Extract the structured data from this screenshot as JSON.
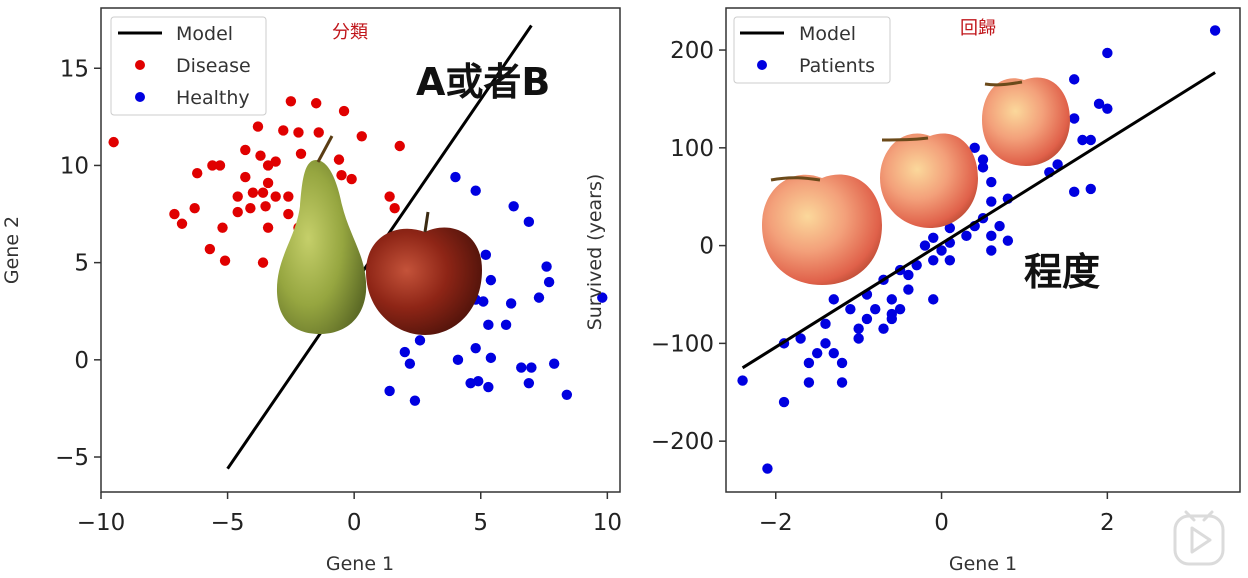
{
  "colors": {
    "model_line": "#000000",
    "disease": "#e00000",
    "healthy": "#0000e0",
    "patients": "#0000e0",
    "annotation_red": "#c0161b"
  },
  "annotations": {
    "classification_title": "分類",
    "regression_title": "回歸",
    "classification_big": "A或者B",
    "regression_big": "程度"
  },
  "images": {
    "pear": "pear-image",
    "red_apple": "red-apple-image",
    "apples": [
      "apple-image",
      "apple-image",
      "apple-image"
    ]
  },
  "watermark_icon": "play-icon",
  "chart_data": [
    {
      "type": "scatter",
      "xlabel": "Gene 1",
      "ylabel": "Gene 2",
      "xlim": [
        -10,
        10.5
      ],
      "ylim": [
        -6.8,
        18.1
      ],
      "xticks": [
        -10,
        -5,
        0,
        5,
        10
      ],
      "yticks": [
        -5,
        0,
        5,
        10,
        15
      ],
      "xtick_labels": [
        "−10",
        "−5",
        "0",
        "5",
        "10"
      ],
      "ytick_labels": [
        "−5",
        "0",
        "5",
        "10",
        "15"
      ],
      "legend": {
        "placement": "top-left",
        "entries": [
          "Model",
          "Disease",
          "Healthy"
        ]
      },
      "model_line": {
        "name": "Model",
        "points": [
          [
            -5,
            -5.6
          ],
          [
            7,
            17.2
          ]
        ]
      },
      "series": [
        {
          "name": "Disease",
          "color": "#e00000",
          "points": [
            [
              -9.5,
              11.2
            ],
            [
              -4.1,
              14.0
            ],
            [
              -2.5,
              13.3
            ],
            [
              -1.5,
              13.2
            ],
            [
              -0.4,
              12.8
            ],
            [
              -3.8,
              12.0
            ],
            [
              -2.8,
              11.8
            ],
            [
              -2.2,
              11.7
            ],
            [
              -1.4,
              11.7
            ],
            [
              0.3,
              11.5
            ],
            [
              -4.3,
              10.8
            ],
            [
              -3.7,
              10.5
            ],
            [
              -2.1,
              10.6
            ],
            [
              -0.6,
              10.3
            ],
            [
              1.8,
              11.0
            ],
            [
              -5.6,
              10.0
            ],
            [
              -5.3,
              10.0
            ],
            [
              -3.4,
              10.0
            ],
            [
              -3.1,
              10.2
            ],
            [
              -6.2,
              9.6
            ],
            [
              -4.3,
              9.4
            ],
            [
              -3.4,
              9.1
            ],
            [
              -0.5,
              9.5
            ],
            [
              -0.1,
              9.3
            ],
            [
              -4.6,
              8.4
            ],
            [
              -4.0,
              8.6
            ],
            [
              -3.6,
              8.6
            ],
            [
              -3.1,
              8.4
            ],
            [
              -2.6,
              8.4
            ],
            [
              -1.8,
              8.6
            ],
            [
              -4.6,
              7.6
            ],
            [
              -4.1,
              7.8
            ],
            [
              -3.5,
              7.9
            ],
            [
              -2.6,
              7.5
            ],
            [
              -6.3,
              7.8
            ],
            [
              -7.1,
              7.5
            ],
            [
              -6.8,
              7.0
            ],
            [
              -5.2,
              6.8
            ],
            [
              -3.4,
              6.8
            ],
            [
              -2.2,
              6.8
            ],
            [
              1.4,
              8.4
            ],
            [
              1.6,
              7.8
            ],
            [
              -5.7,
              5.7
            ],
            [
              -5.1,
              5.1
            ],
            [
              -3.6,
              5.0
            ],
            [
              -0.2,
              5.7
            ],
            [
              -1.6,
              5.3
            ]
          ]
        },
        {
          "name": "Healthy",
          "color": "#0000e0",
          "points": [
            [
              4.0,
              9.4
            ],
            [
              4.8,
              8.7
            ],
            [
              6.3,
              7.9
            ],
            [
              6.9,
              7.1
            ],
            [
              3.6,
              6.4
            ],
            [
              5.2,
              5.4
            ],
            [
              4.5,
              4.2
            ],
            [
              5.4,
              4.1
            ],
            [
              7.6,
              4.8
            ],
            [
              7.7,
              4.0
            ],
            [
              3.1,
              3.6
            ],
            [
              4.8,
              3.1
            ],
            [
              5.1,
              3.0
            ],
            [
              6.2,
              2.9
            ],
            [
              7.3,
              3.2
            ],
            [
              1.3,
              2.5
            ],
            [
              2.6,
              1.0
            ],
            [
              5.3,
              1.8
            ],
            [
              6.0,
              1.8
            ],
            [
              9.8,
              3.2
            ],
            [
              2.0,
              0.4
            ],
            [
              4.1,
              0.0
            ],
            [
              4.8,
              0.6
            ],
            [
              5.4,
              0.1
            ],
            [
              6.6,
              -0.4
            ],
            [
              7.0,
              -0.4
            ],
            [
              7.9,
              -0.2
            ],
            [
              4.6,
              -1.2
            ],
            [
              4.9,
              -1.1
            ],
            [
              5.3,
              -1.4
            ],
            [
              6.9,
              -1.2
            ],
            [
              8.4,
              -1.8
            ],
            [
              1.4,
              -1.6
            ],
            [
              2.4,
              -2.1
            ],
            [
              2.2,
              -0.2
            ]
          ]
        }
      ]
    },
    {
      "type": "scatter",
      "xlabel": "Gene 1",
      "ylabel": "Survived (years)",
      "xlim": [
        -2.6,
        3.6
      ],
      "ylim": [
        -252,
        243
      ],
      "xticks": [
        -2,
        0,
        2
      ],
      "yticks": [
        -200,
        -100,
        0,
        100,
        200
      ],
      "xtick_labels": [
        "−2",
        "0",
        "2"
      ],
      "ytick_labels": [
        "−200",
        "−100",
        "0",
        "100",
        "200"
      ],
      "legend": {
        "placement": "top-left",
        "entries": [
          "Model",
          "Patients"
        ]
      },
      "model_line": {
        "name": "Model",
        "points": [
          [
            -2.4,
            -125
          ],
          [
            3.3,
            177
          ]
        ]
      },
      "series": [
        {
          "name": "Patients",
          "color": "#0000e0",
          "points": [
            [
              3.3,
              220
            ],
            [
              2.0,
              197
            ],
            [
              1.6,
              170
            ],
            [
              1.9,
              145
            ],
            [
              2.0,
              140
            ],
            [
              1.6,
              130
            ],
            [
              1.7,
              108
            ],
            [
              1.8,
              108
            ],
            [
              1.4,
              83
            ],
            [
              1.3,
              75
            ],
            [
              1.6,
              55
            ],
            [
              1.8,
              58
            ],
            [
              0.4,
              100
            ],
            [
              0.5,
              88
            ],
            [
              0.5,
              80
            ],
            [
              0.6,
              65
            ],
            [
              0.3,
              55
            ],
            [
              0.6,
              45
            ],
            [
              0.8,
              48
            ],
            [
              0.2,
              38
            ],
            [
              0.5,
              28
            ],
            [
              0.4,
              20
            ],
            [
              0.7,
              20
            ],
            [
              0.1,
              18
            ],
            [
              0.3,
              10
            ],
            [
              0.6,
              10
            ],
            [
              0.8,
              5
            ],
            [
              0.1,
              3
            ],
            [
              -0.1,
              8
            ],
            [
              0.0,
              -5
            ],
            [
              -0.2,
              0
            ],
            [
              0.6,
              -5
            ],
            [
              -0.1,
              -15
            ],
            [
              0.1,
              -15
            ],
            [
              -0.3,
              -20
            ],
            [
              -0.5,
              -25
            ],
            [
              -0.4,
              -30
            ],
            [
              -0.7,
              -35
            ],
            [
              -0.4,
              -45
            ],
            [
              -0.6,
              -55
            ],
            [
              -0.1,
              -55
            ],
            [
              -0.9,
              -50
            ],
            [
              -0.8,
              -65
            ],
            [
              -0.5,
              -65
            ],
            [
              -0.6,
              -75
            ],
            [
              -0.7,
              -85
            ],
            [
              -0.9,
              -75
            ],
            [
              -1.0,
              -85
            ],
            [
              -1.1,
              -65
            ],
            [
              -1.3,
              -55
            ],
            [
              -1.4,
              -80
            ],
            [
              -1.4,
              -100
            ],
            [
              -1.3,
              -110
            ],
            [
              -1.2,
              -120
            ],
            [
              -1.5,
              -110
            ],
            [
              -1.6,
              -120
            ],
            [
              -1.7,
              -95
            ],
            [
              -1.9,
              -100
            ],
            [
              -1.2,
              -140
            ],
            [
              -1.6,
              -140
            ],
            [
              -1.9,
              -160
            ],
            [
              -2.4,
              -138
            ],
            [
              -2.1,
              -228
            ],
            [
              -0.6,
              -70
            ],
            [
              -1.0,
              -95
            ]
          ]
        }
      ]
    }
  ]
}
